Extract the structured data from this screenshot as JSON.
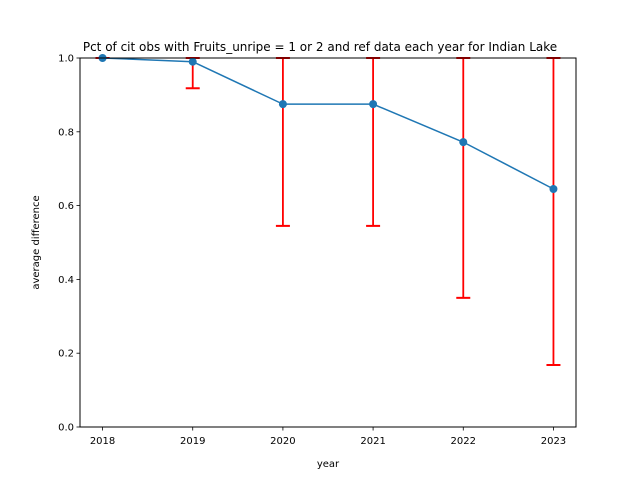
{
  "chart_data": {
    "type": "line",
    "title": "Pct of cit obs with Fruits_unripe = 1 or 2 and ref data each year for Indian Lake",
    "xlabel": "year",
    "ylabel": "average difference",
    "x": [
      "2018",
      "2019",
      "2020",
      "2021",
      "2022",
      "2023"
    ],
    "series": [
      {
        "values": [
          1.0,
          0.99,
          0.875,
          0.875,
          0.772,
          0.645
        ],
        "color": "#1f77b4",
        "marker": "circle"
      }
    ],
    "error_bars": {
      "color": "#ff0000",
      "lower": [
        1.0,
        0.918,
        0.545,
        0.545,
        0.35,
        0.168
      ],
      "upper": [
        1.0,
        1.0,
        1.0,
        1.0,
        1.0,
        1.0
      ]
    },
    "yticks": [
      "0.0",
      "0.2",
      "0.4",
      "0.6",
      "0.8",
      "1.0"
    ],
    "ylim": [
      0.0,
      1.0
    ],
    "grid": false,
    "legend": false
  }
}
